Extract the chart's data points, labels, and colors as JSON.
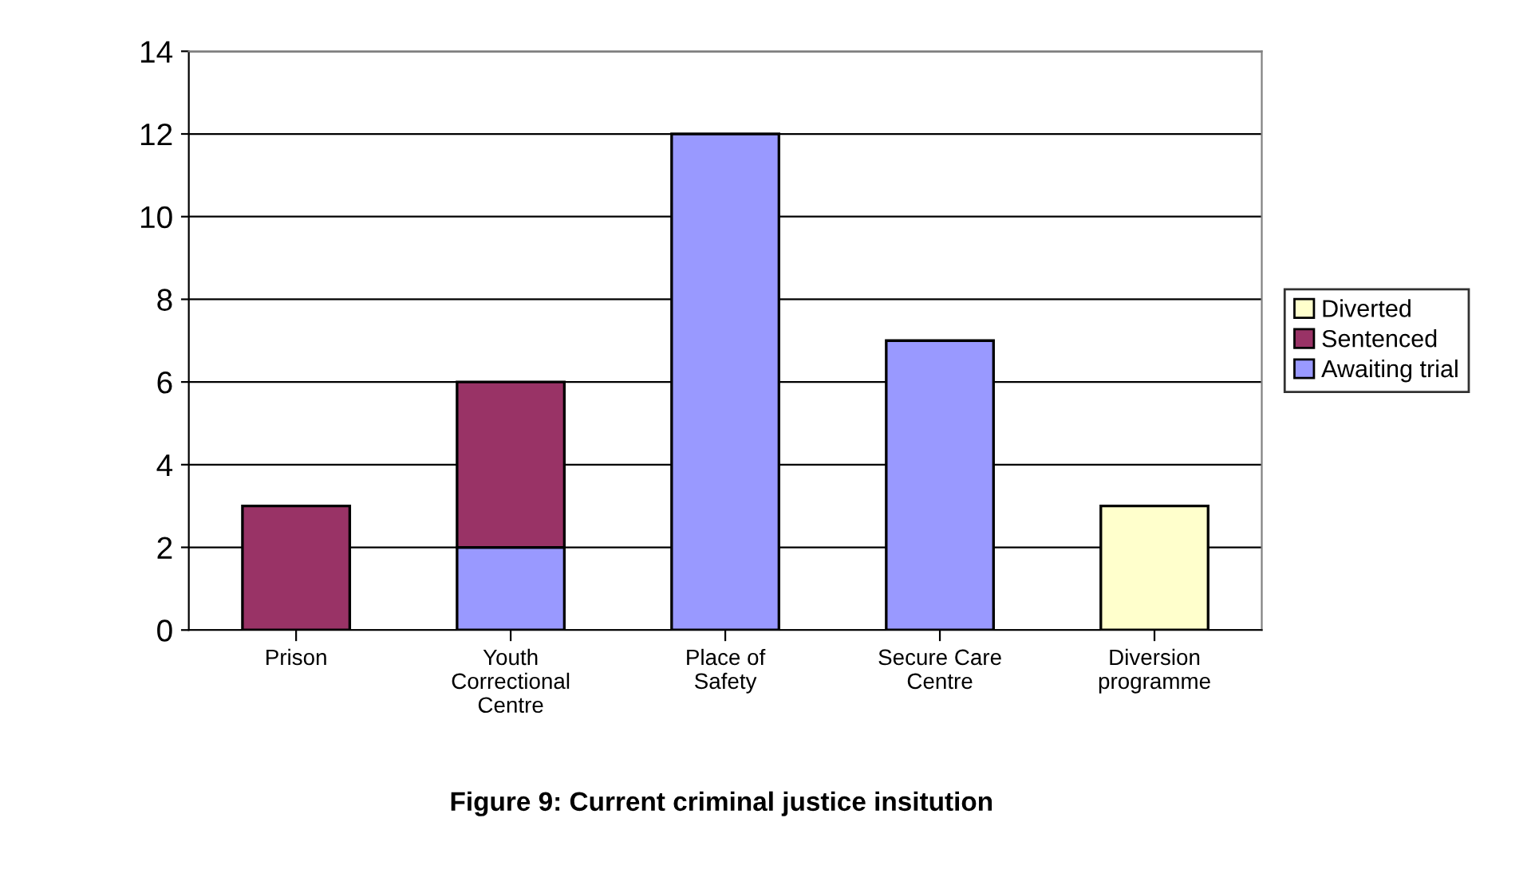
{
  "chart_data": {
    "type": "bar",
    "stacked": true,
    "title": "Figure 9: Current criminal justice insitution",
    "categories": [
      "Prison",
      "Youth Correctional Centre",
      "Place of Safety",
      "Secure Care Centre",
      "Diversion programme"
    ],
    "series": [
      {
        "name": "Awaiting trial",
        "color": "#9999ff",
        "values": [
          null,
          2,
          12,
          7,
          null
        ]
      },
      {
        "name": "Sentenced",
        "color": "#993366",
        "values": [
          3,
          4,
          null,
          null,
          null
        ]
      },
      {
        "name": "Diverted",
        "color": "#ffffcc",
        "values": [
          null,
          null,
          null,
          null,
          3
        ]
      }
    ],
    "ylim": [
      0,
      14
    ],
    "yticks": [
      0,
      2,
      4,
      6,
      8,
      10,
      12,
      14
    ],
    "grid": "y",
    "legend": "right"
  }
}
